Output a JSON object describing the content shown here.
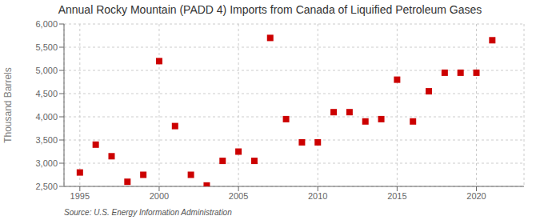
{
  "chart_data": {
    "type": "scatter",
    "title": "Annual Rocky Mountain (PADD 4) Imports from Canada of Liquified Petroleum Gases",
    "y_label": "Thousand Barrels",
    "source": "Source: U.S. Energy Information Administration",
    "x": [
      1995,
      1996,
      1997,
      1998,
      1999,
      2000,
      2001,
      2002,
      2003,
      2004,
      2005,
      2006,
      2007,
      2008,
      2009,
      2010,
      2011,
      2012,
      2013,
      2014,
      2015,
      2016,
      2017,
      2018,
      2019,
      2020,
      2021
    ],
    "values": [
      2800,
      3400,
      3150,
      2600,
      2750,
      5200,
      3800,
      2750,
      2520,
      3050,
      3250,
      3050,
      5700,
      3950,
      3450,
      3450,
      4100,
      4100,
      3900,
      3950,
      4800,
      3900,
      4550,
      4950,
      4950,
      4950,
      5650
    ],
    "color": "#cc0000",
    "marker": "square",
    "xlim": [
      1994.0,
      2023.0
    ],
    "xticks": [
      1995,
      2000,
      2005,
      2010,
      2015,
      2020
    ],
    "ylim": [
      2500,
      6000
    ],
    "yticks": [
      {
        "value": 2500,
        "label": "2,500"
      },
      {
        "value": 3000,
        "label": "3,000"
      },
      {
        "value": 3500,
        "label": "3,500"
      },
      {
        "value": 4000,
        "label": "4,000"
      },
      {
        "value": 4500,
        "label": "4,500"
      },
      {
        "value": 5000,
        "label": "5,000"
      },
      {
        "value": 5500,
        "label": "5,500"
      },
      {
        "value": 6000,
        "label": "6,000"
      }
    ],
    "grid": true
  }
}
